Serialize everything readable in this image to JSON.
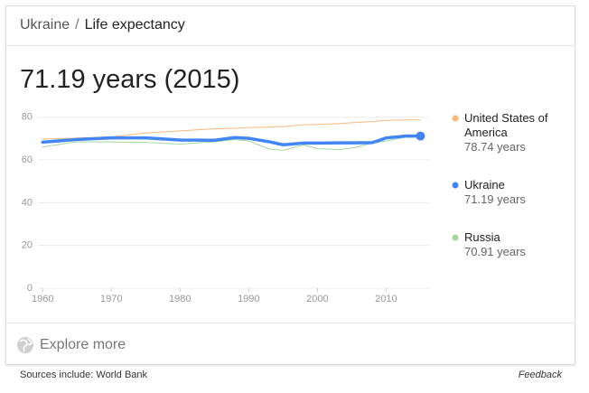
{
  "header": {
    "entity": "Ukraine",
    "separator": "/",
    "topic": "Life expectancy"
  },
  "headline": "71.19 years (2015)",
  "chart_data": {
    "type": "line",
    "x": [
      1960,
      1965,
      1970,
      1975,
      1980,
      1985,
      1988,
      1990,
      1993,
      1995,
      1998,
      2000,
      2003,
      2005,
      2008,
      2010,
      2013,
      2015
    ],
    "series": [
      {
        "name": "United States of America",
        "latest": "78.74 years",
        "color": "#f9b97c",
        "width": 1,
        "values": [
          69.8,
          70.2,
          70.8,
          72.6,
          73.6,
          74.6,
          74.8,
          75.2,
          75.4,
          75.6,
          76.5,
          76.6,
          77.0,
          77.4,
          78.0,
          78.5,
          78.7,
          78.74
        ]
      },
      {
        "name": "Ukraine",
        "latest": "71.19 years",
        "color": "#4285f4",
        "width": 3.5,
        "values": [
          68.3,
          69.6,
          70.3,
          70.3,
          69.3,
          69.2,
          70.5,
          70.1,
          68.5,
          67.1,
          67.9,
          67.9,
          68.0,
          68.0,
          68.1,
          70.3,
          71.2,
          71.19
        ]
      },
      {
        "name": "Russia",
        "latest": "70.91 years",
        "color": "#a5d6a0",
        "width": 1,
        "values": [
          66.1,
          68.5,
          68.4,
          68.2,
          67.4,
          68.5,
          69.5,
          68.9,
          65.1,
          64.5,
          67.0,
          65.3,
          64.9,
          65.5,
          67.9,
          68.8,
          70.8,
          70.91
        ]
      }
    ],
    "xlim": [
      1958,
      2016
    ],
    "ylim": [
      0,
      82
    ],
    "xticks": [
      1960,
      1970,
      1980,
      1990,
      2000,
      2010
    ],
    "yticks": [
      0,
      20,
      40,
      60,
      80
    ],
    "grid": true
  },
  "footer": {
    "explore": "Explore more",
    "source": "Sources include: World Bank",
    "feedback": "Feedback"
  }
}
